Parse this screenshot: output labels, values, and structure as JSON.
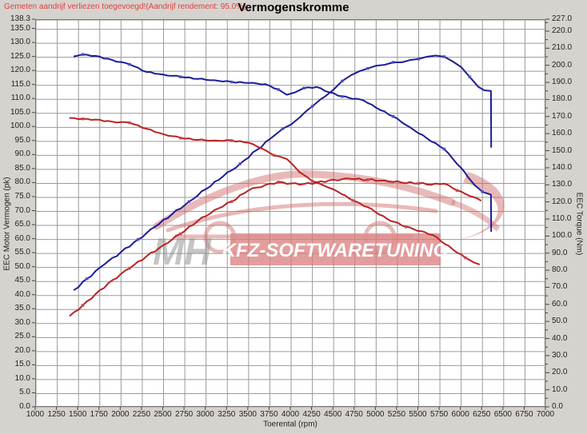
{
  "header": {
    "note": "Gemeten aandrijf verliezen toegevoegd!(Aandrijf rendement: 95.0%)",
    "title": "Vermogenskromme"
  },
  "watermark": {
    "initials": "MH",
    "banner": "KFZ-SOFTWARETUNING"
  },
  "colors": {
    "background": "#d6d3ce",
    "plot_bg": "#ffffff",
    "plot_border": "#777777",
    "grid": "#9a9a9a",
    "note_red": "#e04040",
    "tick_text": "#222222",
    "curve_blue": "#1c1c96",
    "curve_red": "#bb2222",
    "marker_blue": "#5050c0",
    "marker_red": "#c24a4a",
    "watermark_red": "#d06a6a",
    "banner_red": "#d97c7c",
    "banner_text": "#ffffff",
    "watermark_gray": "#8d8d8d"
  },
  "chart_data": {
    "type": "line",
    "title": "Vermogenskromme",
    "xlabel": "Toerental (rpm)",
    "ylabel_left": "EEC Motor Vermogen (pk)",
    "ylabel_right": "EEC Torque (Nm)",
    "x_range": [
      1000,
      7000
    ],
    "y_left_range": [
      0,
      138.3
    ],
    "y_right_range": [
      0,
      227.0
    ],
    "grid": true,
    "legend": "none",
    "x_ticks": [
      "1000",
      "1250",
      "1500",
      "1750",
      "2000",
      "2250",
      "2500",
      "2750",
      "3000",
      "3250",
      "3500",
      "3750",
      "4000",
      "4250",
      "4500",
      "4750",
      "5000",
      "5250",
      "5500",
      "5750",
      "6000",
      "6250",
      "6500",
      "6750",
      "7000"
    ],
    "y_left_ticks": [
      "138.3",
      "135.0",
      "130.0",
      "125.0",
      "120.0",
      "115.0",
      "110.0",
      "105.0",
      "100.0",
      "95.0",
      "90.0",
      "85.0",
      "80.0",
      "75.0",
      "70.0",
      "65.0",
      "60.0",
      "55.0",
      "50.0",
      "45.0",
      "40.0",
      "35.0",
      "30.0",
      "25.0",
      "20.0",
      "15.0",
      "10.0",
      "5.0",
      "0.0"
    ],
    "y_right_ticks": [
      "227.0",
      "220.0",
      "210.0",
      "200.0",
      "190.0",
      "180.0",
      "170.0",
      "160.0",
      "150.0",
      "140.0",
      "130.0",
      "120.0",
      "110.0",
      "100.0",
      "90.0",
      "80.0",
      "70.0",
      "60.0",
      "50.0",
      "40.0",
      "30.0",
      "20.0",
      "10.0",
      "0.0"
    ],
    "series": [
      {
        "name": "power-curve-blue",
        "axis": "left",
        "unit": "pk",
        "color": "#1c1c96",
        "points": [
          [
            1450,
            42
          ],
          [
            1600,
            46
          ],
          [
            1800,
            51
          ],
          [
            2000,
            55.5
          ],
          [
            2200,
            60
          ],
          [
            2400,
            64.5
          ],
          [
            2600,
            69
          ],
          [
            2800,
            73.5
          ],
          [
            3000,
            78
          ],
          [
            3200,
            82.5
          ],
          [
            3400,
            87
          ],
          [
            3600,
            92
          ],
          [
            3800,
            97
          ],
          [
            3900,
            99.5
          ],
          [
            4000,
            101
          ],
          [
            4100,
            103.5
          ],
          [
            4250,
            107.5
          ],
          [
            4400,
            111
          ],
          [
            4500,
            113.5
          ],
          [
            4600,
            116.5
          ],
          [
            4700,
            118.5
          ],
          [
            4800,
            120
          ],
          [
            4900,
            121
          ],
          [
            5000,
            122
          ],
          [
            5100,
            122.3
          ],
          [
            5200,
            123.2
          ],
          [
            5300,
            123.2
          ],
          [
            5400,
            124
          ],
          [
            5500,
            124.4
          ],
          [
            5600,
            125.2
          ],
          [
            5700,
            125.6
          ],
          [
            5800,
            125.2
          ],
          [
            5900,
            123.5
          ],
          [
            6000,
            121.5
          ],
          [
            6100,
            118
          ],
          [
            6200,
            114.5
          ],
          [
            6270,
            113.2
          ],
          [
            6350,
            113
          ],
          [
            6353,
            93
          ]
        ]
      },
      {
        "name": "torque-curve-blue",
        "axis": "right",
        "unit": "Nm",
        "color": "#1c1c96",
        "points": [
          [
            1450,
            205.7
          ],
          [
            1550,
            206.8
          ],
          [
            1700,
            206
          ],
          [
            1900,
            203.5
          ],
          [
            2100,
            201
          ],
          [
            2300,
            196.6
          ],
          [
            2500,
            195
          ],
          [
            2700,
            193.7
          ],
          [
            2900,
            192.5
          ],
          [
            3100,
            191.7
          ],
          [
            3300,
            190.7
          ],
          [
            3500,
            190.1
          ],
          [
            3700,
            189.4
          ],
          [
            3850,
            186.3
          ],
          [
            3950,
            183.2
          ],
          [
            4050,
            184.7
          ],
          [
            4150,
            187.1
          ],
          [
            4300,
            187.8
          ],
          [
            4450,
            184.7
          ],
          [
            4600,
            182.2
          ],
          [
            4850,
            179.9
          ],
          [
            5000,
            175.6
          ],
          [
            5200,
            170.5
          ],
          [
            5400,
            164.1
          ],
          [
            5600,
            157.6
          ],
          [
            5800,
            151.4
          ],
          [
            6000,
            140.3
          ],
          [
            6160,
            130.2
          ],
          [
            6250,
            126.4
          ],
          [
            6350,
            124.7
          ],
          [
            6353,
            103.4
          ]
        ]
      },
      {
        "name": "power-curve-red",
        "axis": "left",
        "unit": "pk",
        "color": "#bb2222",
        "points": [
          [
            1400,
            32.8
          ],
          [
            1550,
            36.5
          ],
          [
            1700,
            40.5
          ],
          [
            1900,
            45.5
          ],
          [
            2100,
            49.7
          ],
          [
            2300,
            54
          ],
          [
            2500,
            58
          ],
          [
            2700,
            62
          ],
          [
            2900,
            66.5
          ],
          [
            3100,
            70.5
          ],
          [
            3300,
            73.5
          ],
          [
            3500,
            77.5
          ],
          [
            3700,
            79.5
          ],
          [
            3850,
            80.5
          ],
          [
            4000,
            80
          ],
          [
            4150,
            79.8
          ],
          [
            4300,
            80.3
          ],
          [
            4500,
            81.3
          ],
          [
            4700,
            81.6
          ],
          [
            4900,
            81.3
          ],
          [
            5100,
            81
          ],
          [
            5300,
            80.3
          ],
          [
            5500,
            80
          ],
          [
            5650,
            79.5
          ],
          [
            5800,
            79.9
          ],
          [
            5950,
            77.5
          ],
          [
            6100,
            75.5
          ],
          [
            6230,
            73.9
          ]
        ]
      },
      {
        "name": "torque-curve-red",
        "axis": "right",
        "unit": "Nm",
        "color": "#bb2222",
        "points": [
          [
            1400,
            169.6
          ],
          [
            1550,
            169.1
          ],
          [
            1700,
            168.7
          ],
          [
            1900,
            167.4
          ],
          [
            2100,
            166.8
          ],
          [
            2300,
            163.3
          ],
          [
            2500,
            160.1
          ],
          [
            2700,
            157.9
          ],
          [
            2900,
            156.8
          ],
          [
            3100,
            156.4
          ],
          [
            3300,
            156.4
          ],
          [
            3500,
            155.1
          ],
          [
            3650,
            151.8
          ],
          [
            3800,
            147.7
          ],
          [
            3950,
            145.6
          ],
          [
            4100,
            137.9
          ],
          [
            4250,
            132.6
          ],
          [
            4400,
            129.7
          ],
          [
            4550,
            126.4
          ],
          [
            4726,
            121.3
          ],
          [
            4900,
            117.4
          ],
          [
            5130,
            110.5
          ],
          [
            5350,
            105.9
          ],
          [
            5666,
            101.1
          ],
          [
            5900,
            92.7
          ],
          [
            6050,
            87.8
          ],
          [
            6150,
            85
          ],
          [
            6210,
            83.9
          ]
        ]
      }
    ]
  }
}
